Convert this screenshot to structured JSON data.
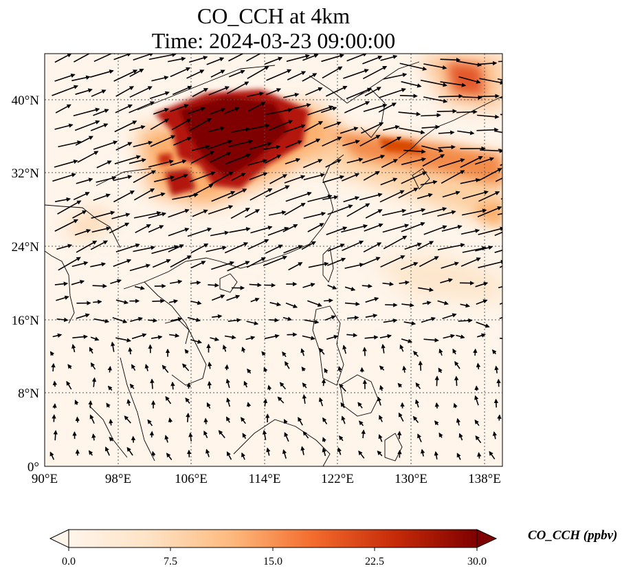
{
  "title_line1": "CO_CCH at 4km",
  "title_line2": "Time: 2024-03-23 09:00:00",
  "lat_labels": [
    "0°",
    "8°N",
    "16°N",
    "24°N",
    "32°N",
    "40°N"
  ],
  "lon_labels": [
    "90°E",
    "98°E",
    "106°E",
    "114°E",
    "122°E",
    "130°E",
    "138°E"
  ],
  "colorbar": {
    "label": "CO_CCH (ppbv)",
    "ticks": [
      "0.0",
      "7.5",
      "15.0",
      "22.5",
      "30.0"
    ],
    "colors": [
      "#fff5eb",
      "#fdd0a2",
      "#fd8d3c",
      "#d94801",
      "#a50f15",
      "#7f0000"
    ]
  }
}
